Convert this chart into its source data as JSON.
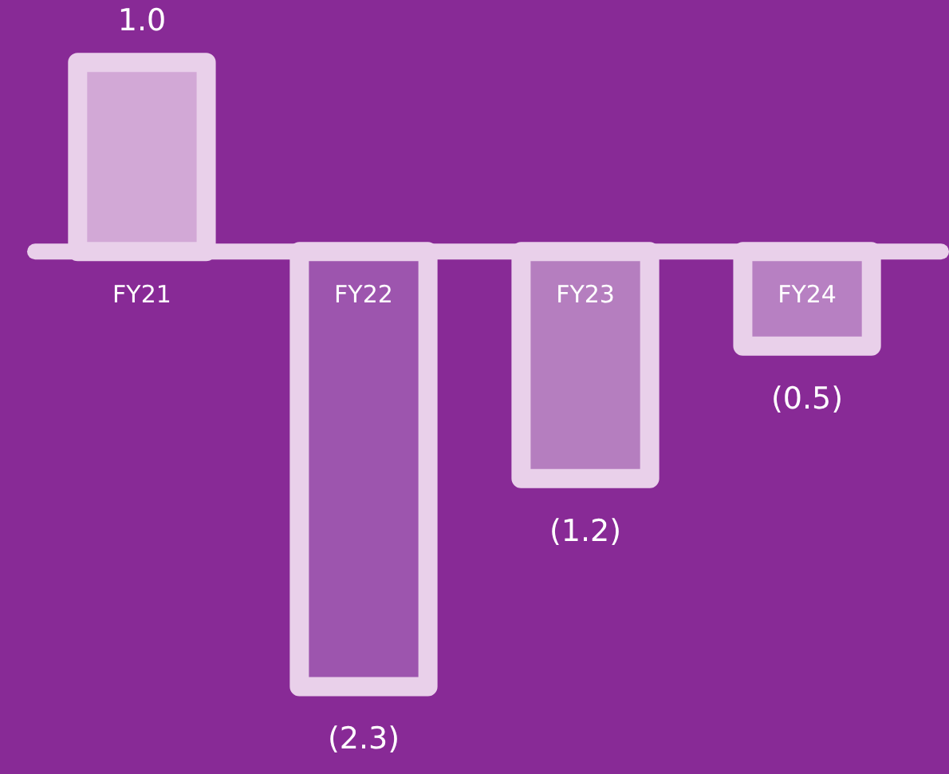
{
  "chart_data": {
    "type": "bar",
    "categories": [
      "FY21",
      "FY22",
      "FY23",
      "FY24"
    ],
    "values": [
      1.0,
      -2.3,
      -1.2,
      -0.5
    ],
    "colors": [
      "#d2a8d6",
      "#9d55ae",
      "#b57ebf",
      "#b780c2"
    ],
    "value_labels": [
      "1.0",
      "(2.3)",
      "(1.2)",
      "(0.5)"
    ],
    "grid": false,
    "legend": false
  }
}
